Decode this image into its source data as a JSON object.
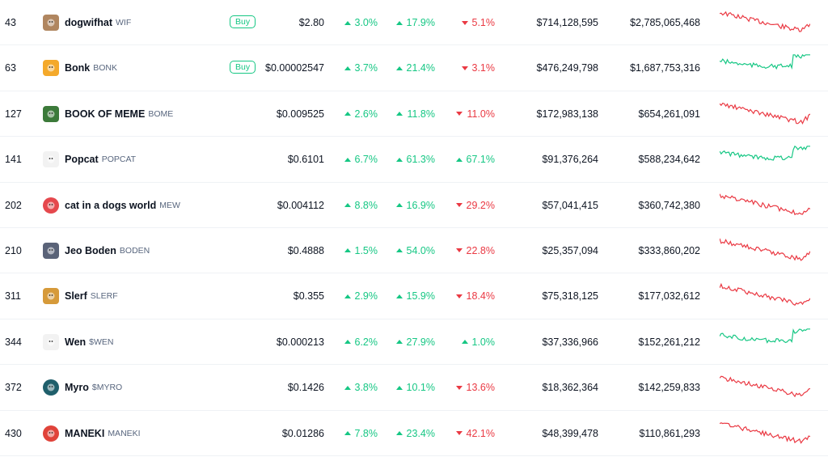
{
  "colors": {
    "up": "#16c784",
    "down": "#ea3943",
    "buy": "#16c784"
  },
  "rows": [
    {
      "rank": "43",
      "name": "dogwifhat",
      "symbol": "WIF",
      "buy": "Buy",
      "price": "$2.80",
      "p1h": "3.0%",
      "p1h_dir": "up",
      "p24h": "17.9%",
      "p24h_dir": "up",
      "p7d": "5.1%",
      "p7d_dir": "down",
      "mcap": "$714,128,595",
      "vol": "$2,785,065,468",
      "trend": "down",
      "logo_icon": "dog-hat-icon",
      "logo_color": "#b08660"
    },
    {
      "rank": "63",
      "name": "Bonk",
      "symbol": "BONK",
      "buy": "Buy",
      "price": "$0.00002547",
      "p1h": "3.7%",
      "p1h_dir": "up",
      "p24h": "21.4%",
      "p24h_dir": "up",
      "p7d": "3.1%",
      "p7d_dir": "down",
      "mcap": "$476,249,798",
      "vol": "$1,687,753,316",
      "trend": "up",
      "logo_icon": "shiba-dog-icon",
      "logo_color": "#f4a92b"
    },
    {
      "rank": "127",
      "name": "BOOK OF MEME",
      "symbol": "BOME",
      "buy": "",
      "price": "$0.009525",
      "p1h": "2.6%",
      "p1h_dir": "up",
      "p24h": "11.8%",
      "p24h_dir": "up",
      "p7d": "11.0%",
      "p7d_dir": "down",
      "mcap": "$172,983,138",
      "vol": "$654,261,091",
      "trend": "down",
      "logo_icon": "frog-book-icon",
      "logo_color": "#3c7a3a"
    },
    {
      "rank": "141",
      "name": "Popcat",
      "symbol": "POPCAT",
      "buy": "",
      "price": "$0.6101",
      "p1h": "6.7%",
      "p1h_dir": "up",
      "p24h": "61.3%",
      "p24h_dir": "up",
      "p7d": "67.1%",
      "p7d_dir": "up",
      "mcap": "$91,376,264",
      "vol": "$588,234,642",
      "trend": "up",
      "logo_icon": "cat-face-icon",
      "logo_color": "#e7d8cf"
    },
    {
      "rank": "202",
      "name": "cat in a dogs world",
      "symbol": "MEW",
      "buy": "",
      "price": "$0.004112",
      "p1h": "8.8%",
      "p1h_dir": "up",
      "p24h": "16.9%",
      "p24h_dir": "up",
      "p7d": "29.2%",
      "p7d_dir": "down",
      "mcap": "$57,041,415",
      "vol": "$360,742,380",
      "trend": "down",
      "logo_icon": "cat-logo-icon",
      "logo_color": "#e5484d"
    },
    {
      "rank": "210",
      "name": "Jeo Boden",
      "symbol": "BODEN",
      "buy": "",
      "price": "$0.4888",
      "p1h": "1.5%",
      "p1h_dir": "up",
      "p24h": "54.0%",
      "p24h_dir": "up",
      "p7d": "22.8%",
      "p7d_dir": "down",
      "mcap": "$25,357,094",
      "vol": "$333,860,202",
      "trend": "down",
      "logo_icon": "man-suit-icon",
      "logo_color": "#5a6378"
    },
    {
      "rank": "311",
      "name": "Slerf",
      "symbol": "SLERF",
      "buy": "",
      "price": "$0.355",
      "p1h": "2.9%",
      "p1h_dir": "up",
      "p24h": "15.9%",
      "p24h_dir": "up",
      "p7d": "18.4%",
      "p7d_dir": "down",
      "mcap": "$75,318,125",
      "vol": "$177,032,612",
      "trend": "down",
      "logo_icon": "sloth-icon",
      "logo_color": "#d69a3a"
    },
    {
      "rank": "344",
      "name": "Wen",
      "symbol": "$WEN",
      "buy": "",
      "price": "$0.000213",
      "p1h": "6.2%",
      "p1h_dir": "up",
      "p24h": "27.9%",
      "p24h_dir": "up",
      "p7d": "1.0%",
      "p7d_dir": "up",
      "mcap": "$37,336,966",
      "vol": "$152,261,212",
      "trend": "up",
      "logo_icon": "cat-wen-icon",
      "logo_color": "#4a6a8a"
    },
    {
      "rank": "372",
      "name": "Myro",
      "symbol": "$MYRO",
      "buy": "",
      "price": "$0.1426",
      "p1h": "3.8%",
      "p1h_dir": "up",
      "p24h": "10.1%",
      "p24h_dir": "up",
      "p7d": "13.6%",
      "p7d_dir": "down",
      "mcap": "$18,362,364",
      "vol": "$142,259,833",
      "trend": "down",
      "logo_icon": "myro-dog-icon",
      "logo_color": "#1f5f6b"
    },
    {
      "rank": "430",
      "name": "MANEKI",
      "symbol": "MANEKI",
      "buy": "",
      "price": "$0.01286",
      "p1h": "7.8%",
      "p1h_dir": "up",
      "p24h": "23.4%",
      "p24h_dir": "up",
      "p7d": "42.1%",
      "p7d_dir": "down",
      "mcap": "$48,399,478",
      "vol": "$110,861,293",
      "trend": "down",
      "logo_icon": "lucky-cat-icon",
      "logo_color": "#e0433a"
    }
  ]
}
